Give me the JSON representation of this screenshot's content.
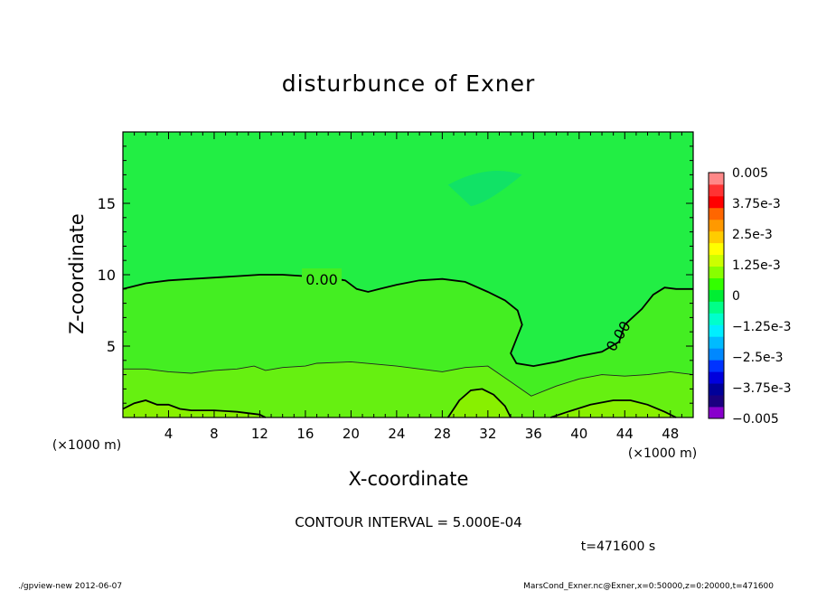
{
  "chart_data": {
    "type": "heatmap",
    "title": "disturbunce of Exner",
    "xlabel": "X-coordinate",
    "ylabel": "Z-coordinate",
    "x_unit_left": "(×1000 m)",
    "x_unit_right": "(×1000 m)",
    "xlim": [
      0,
      50
    ],
    "ylim": [
      0,
      20
    ],
    "xticks": [
      4,
      8,
      12,
      16,
      20,
      24,
      28,
      32,
      36,
      40,
      44,
      48
    ],
    "yticks": [
      5,
      10,
      15
    ],
    "contour_interval_text": "CONTOUR INTERVAL = 5.000E-04",
    "time_text": "t=471600 s",
    "contour_labels": [
      "0.00",
      "0.00"
    ],
    "zero_contour": [
      [
        0,
        9.0
      ],
      [
        2,
        9.4
      ],
      [
        4,
        9.6
      ],
      [
        6,
        9.7
      ],
      [
        8,
        9.8
      ],
      [
        10,
        9.9
      ],
      [
        12,
        10.0
      ],
      [
        14,
        10.0
      ],
      [
        16,
        9.9
      ],
      [
        18,
        9.8
      ],
      [
        19.5,
        9.6
      ],
      [
        20.5,
        9.0
      ],
      [
        21.5,
        8.8
      ],
      [
        22.5,
        9.0
      ],
      [
        24,
        9.3
      ],
      [
        26,
        9.6
      ],
      [
        28,
        9.7
      ],
      [
        30,
        9.5
      ],
      [
        32,
        8.8
      ],
      [
        33.5,
        8.2
      ],
      [
        34.6,
        7.5
      ],
      [
        35,
        6.5
      ],
      [
        34.5,
        5.5
      ],
      [
        34,
        4.5
      ],
      [
        34.5,
        3.8
      ],
      [
        36,
        3.6
      ],
      [
        38,
        3.9
      ],
      [
        40,
        4.3
      ],
      [
        42,
        4.6
      ],
      [
        43.5,
        5.3
      ],
      [
        44,
        6.5
      ],
      [
        45.5,
        7.6
      ],
      [
        46.5,
        8.6
      ],
      [
        47.5,
        9.1
      ],
      [
        48.5,
        9.0
      ],
      [
        50,
        9.0
      ]
    ],
    "thin_contour": [
      [
        0,
        3.4
      ],
      [
        2,
        3.4
      ],
      [
        4,
        3.2
      ],
      [
        6,
        3.1
      ],
      [
        8,
        3.3
      ],
      [
        10,
        3.4
      ],
      [
        11.5,
        3.6
      ],
      [
        12.5,
        3.3
      ],
      [
        14,
        3.5
      ],
      [
        16,
        3.6
      ],
      [
        17,
        3.8
      ],
      [
        20,
        3.9
      ],
      [
        24,
        3.6
      ],
      [
        28,
        3.2
      ],
      [
        30,
        3.5
      ],
      [
        32,
        3.6
      ],
      [
        34,
        2.5
      ],
      [
        35.8,
        1.5
      ],
      [
        38,
        2.2
      ],
      [
        40,
        2.7
      ],
      [
        42,
        3.0
      ],
      [
        44,
        2.9
      ],
      [
        46,
        3.0
      ],
      [
        48,
        3.2
      ],
      [
        50,
        3.0
      ]
    ],
    "bottom_contour_left": [
      [
        0,
        0.6
      ],
      [
        1,
        1.0
      ],
      [
        2,
        1.2
      ],
      [
        3,
        0.9
      ],
      [
        4,
        0.9
      ],
      [
        5,
        0.6
      ],
      [
        6,
        0.5
      ],
      [
        8,
        0.5
      ],
      [
        10,
        0.4
      ],
      [
        12,
        0.2
      ],
      [
        12.5,
        0
      ]
    ],
    "bottom_contour_mid": [
      [
        28.5,
        0
      ],
      [
        29.5,
        1.2
      ],
      [
        30.5,
        1.9
      ],
      [
        31.5,
        2.0
      ],
      [
        32.5,
        1.6
      ],
      [
        33.5,
        0.8
      ],
      [
        34,
        0
      ]
    ],
    "bottom_contour_right": [
      [
        37.5,
        0
      ],
      [
        39,
        0.4
      ],
      [
        41,
        0.9
      ],
      [
        43,
        1.2
      ],
      [
        44.5,
        1.2
      ],
      [
        46,
        0.9
      ],
      [
        47.5,
        0.4
      ],
      [
        48.5,
        0
      ]
    ],
    "colorbar": {
      "levels": [
        -0.005,
        -0.0045,
        -0.004,
        -0.0035,
        -0.003,
        -0.0025,
        -0.002,
        -0.0015,
        -0.001,
        -0.0005,
        0,
        0.0005,
        0.001,
        0.0015,
        0.002,
        0.0025,
        0.003,
        0.0035,
        0.004,
        0.0045,
        0.005
      ],
      "colors": [
        "#8800cc",
        "#1a0080",
        "#000099",
        "#0000dd",
        "#0033ff",
        "#0088ff",
        "#00bbff",
        "#00eeff",
        "#00ffcc",
        "#00ff88",
        "#00ee33",
        "#33ff00",
        "#88ff00",
        "#ccff00",
        "#ffff00",
        "#ffcc00",
        "#ff9900",
        "#ff6600",
        "#ff0000",
        "#ff3333",
        "#ff8888"
      ],
      "labels": [
        "0.005",
        "3.75e-3",
        "2.5e-3",
        "1.25e-3",
        "0",
        "−1.25e-3",
        "−2.5e-3",
        "−3.75e-3",
        "−0.005"
      ]
    },
    "field_colors": {
      "upper": "#22ee44",
      "upper_patch": "#11e266",
      "middle": "#44ee22",
      "lower": "#66f011",
      "bottom": "#88f000"
    }
  },
  "footer": {
    "left": "./gpview-new   2012-06-07",
    "right": "MarsCond_Exner.nc@Exner,x=0:50000,z=0:20000,t=471600"
  }
}
